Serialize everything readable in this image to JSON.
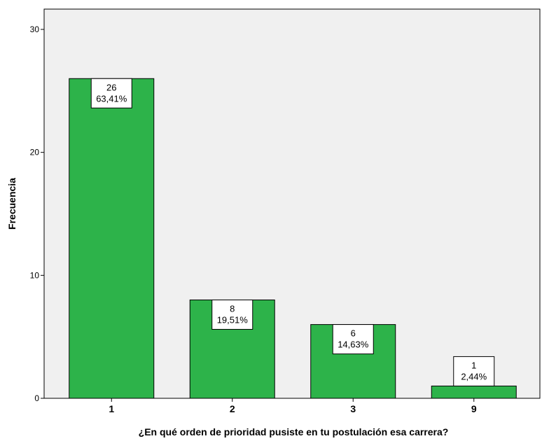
{
  "chart_data": {
    "type": "bar",
    "title": "",
    "xlabel": "¿En qué orden de prioridad pusiste en tu postulación esa carrera?",
    "ylabel": "Frecuencia",
    "categories": [
      "1",
      "2",
      "3",
      "9"
    ],
    "values": [
      26,
      8,
      6,
      1
    ],
    "labels": [
      {
        "count": "26",
        "percent": "63,41%"
      },
      {
        "count": "8",
        "percent": "19,51%"
      },
      {
        "count": "6",
        "percent": "14,63%"
      },
      {
        "count": "1",
        "percent": "2,44%"
      }
    ],
    "ylim": [
      0,
      30
    ],
    "yticks": [
      "0",
      "10",
      "20",
      "30"
    ],
    "grid": false,
    "colors": {
      "bar": "#2db34a",
      "plot_background": "#f0f0f0",
      "axis": "#000000"
    }
  }
}
